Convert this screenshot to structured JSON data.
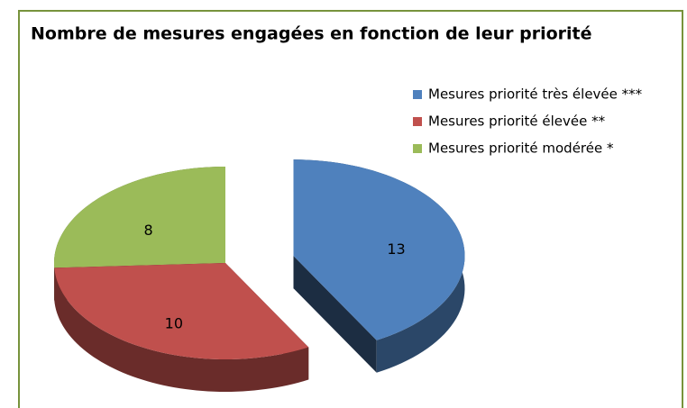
{
  "chart_data": {
    "type": "pie3d",
    "title": "Nombre de mesures engagées en fonction de leur priorité",
    "categories": [
      "Mesures priorité très élevée ***",
      "Mesures priorité élevée **",
      "Mesures priorité modérée *"
    ],
    "values": [
      13,
      10,
      8
    ],
    "colors": [
      "#4f81bd",
      "#c0504d",
      "#9bbb59"
    ],
    "exploded": [
      true,
      false,
      false
    ],
    "legend": "right"
  }
}
